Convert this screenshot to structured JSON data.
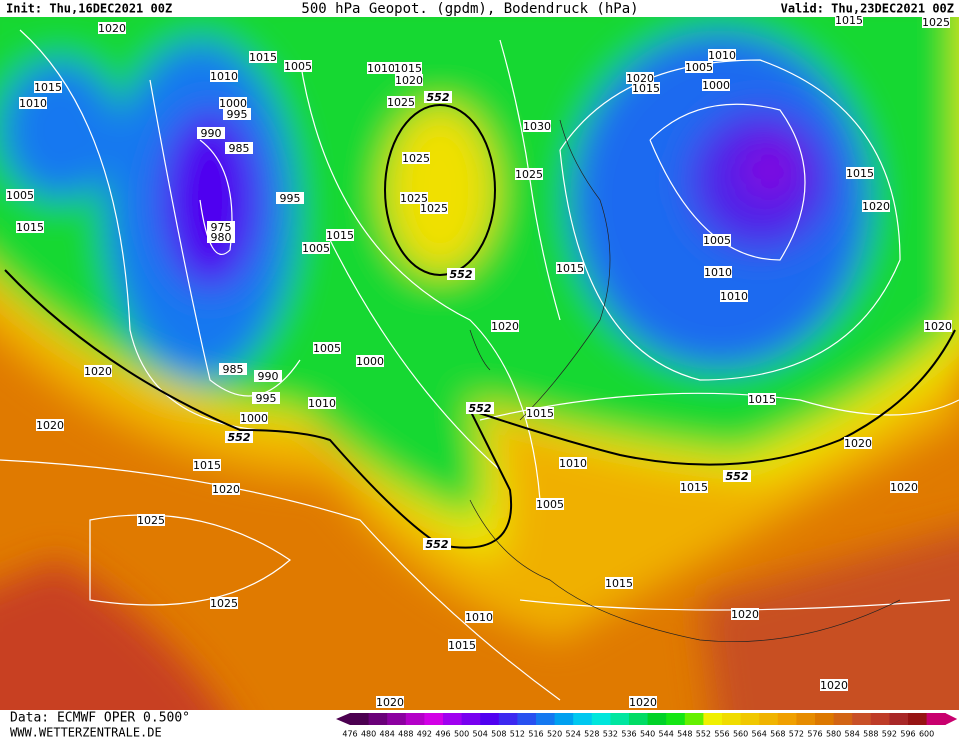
{
  "header": {
    "init": "Init: Thu,16DEC2021 00Z",
    "title": "500 hPa Geopot. (gpdm), Bodendruck (hPa)",
    "valid": "Valid: Thu,23DEC2021 00Z"
  },
  "footer": {
    "data": "Data: ECMWF OPER 0.500°",
    "url": "WWW.WETTERZENTRALE.DE"
  },
  "map": {
    "pressure_labels": [
      1020,
      1015,
      1005,
      1010,
      1015,
      1010,
      1000,
      995,
      990,
      985,
      1005,
      995,
      975,
      980,
      1015,
      1005,
      1015,
      1010,
      1015,
      1020,
      1025,
      1025,
      1025,
      1025,
      1030,
      1025,
      1020,
      1005,
      1015,
      1010,
      1000,
      1015,
      1020,
      1005,
      1010,
      1010,
      1015,
      1020,
      1005,
      1000,
      985,
      990,
      995,
      1000,
      1010,
      1020,
      1020,
      1015,
      1015,
      1020,
      1020,
      1010,
      1015,
      1020,
      1015,
      1020,
      1005,
      1025,
      1025,
      1015,
      1010,
      1020,
      1015,
      1020,
      1020,
      1020,
      1025,
      1015
    ],
    "geopotential_labels": [
      552,
      552,
      552,
      552,
      552,
      552
    ]
  },
  "legend": {
    "values": [
      476,
      480,
      484,
      488,
      492,
      496,
      500,
      504,
      508,
      512,
      516,
      520,
      524,
      528,
      532,
      536,
      540,
      544,
      548,
      552,
      556,
      560,
      564,
      568,
      572,
      576,
      580,
      584,
      588,
      592,
      596,
      600
    ],
    "colors": [
      "#4b0050",
      "#6a0078",
      "#8c00a0",
      "#b400c8",
      "#d200e6",
      "#a000f0",
      "#7800f0",
      "#5000f0",
      "#3c28f0",
      "#2850f0",
      "#1478f0",
      "#00a0f0",
      "#00c8f0",
      "#00e6dc",
      "#00e6a0",
      "#00dc64",
      "#00d228",
      "#14e614",
      "#64f000",
      "#f0f000",
      "#f0dc00",
      "#f0c800",
      "#f0b400",
      "#f0a000",
      "#e68c00",
      "#dc7800",
      "#d26414",
      "#c85028",
      "#be3c28",
      "#a82828",
      "#961414",
      "#c8006e"
    ]
  }
}
